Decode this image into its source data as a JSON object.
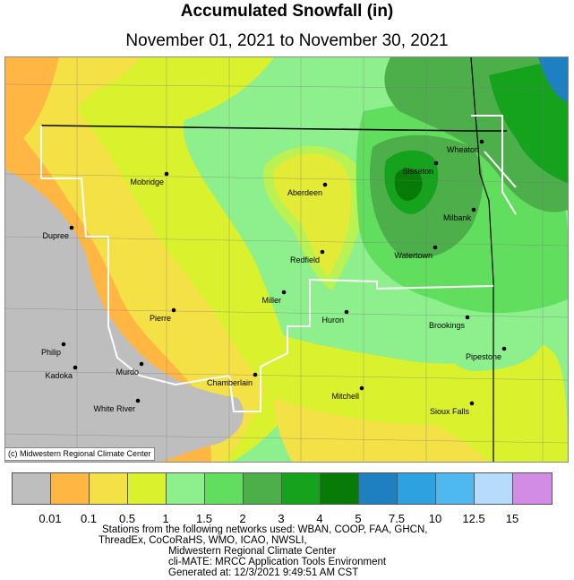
{
  "title": "Accumulated Snowfall (in)",
  "subtitle": "November 01, 2021 to November 30, 2021",
  "credit": "(c) Midwestern Regional Climate Center",
  "legend": {
    "colors": [
      "#bebebe",
      "#ffb643",
      "#f3e145",
      "#d9f22d",
      "#8df08c",
      "#62de5f",
      "#4caf4a",
      "#15a21d",
      "#077a07",
      "#1e7fc1",
      "#2ea2e0",
      "#50b8f0",
      "#b7dcfb",
      "#d28ce6"
    ],
    "ticks": [
      "0.01",
      "0.1",
      "0.5",
      "1",
      "1.5",
      "2",
      "3",
      "4",
      "5",
      "7.5",
      "10",
      "12.5",
      "15"
    ]
  },
  "cities": [
    {
      "name": "Mobridge"
    },
    {
      "name": "Aberdeen"
    },
    {
      "name": "Sisseton"
    },
    {
      "name": "Wheaton"
    },
    {
      "name": "Milbank"
    },
    {
      "name": "Dupree"
    },
    {
      "name": "Redfield"
    },
    {
      "name": "Watertown"
    },
    {
      "name": "Miller"
    },
    {
      "name": "Pierre"
    },
    {
      "name": "Huron"
    },
    {
      "name": "Brookings"
    },
    {
      "name": "Philip"
    },
    {
      "name": "Kadoka"
    },
    {
      "name": "Murdo"
    },
    {
      "name": "Pipestone"
    },
    {
      "name": "Chamberlain"
    },
    {
      "name": "Mitchell"
    },
    {
      "name": "White River"
    },
    {
      "name": "Sioux Falls"
    }
  ],
  "footer": {
    "line1": "Stations from the following networks used: WBAN, COOP, FAA, GHCN,",
    "line2": "ThreadEx, CoCoRaHS, WMO, ICAO, NWSLI,",
    "line3": "Midwestern Regional Climate Center",
    "line4": "cli-MATE: MRCC Application Tools Environment",
    "line5": "Generated at: 12/3/2021 9:49:51 AM CST"
  }
}
